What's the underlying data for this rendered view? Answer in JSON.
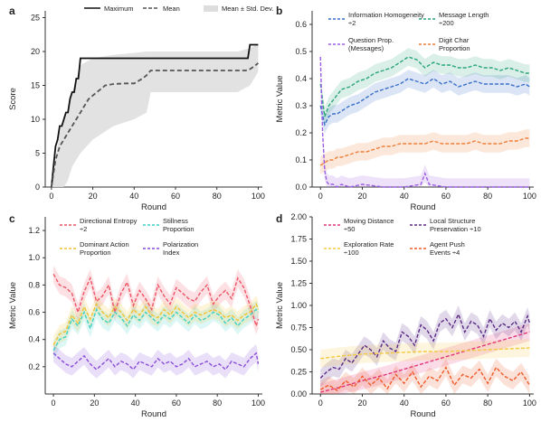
{
  "chart_data": [
    {
      "panel": "a",
      "type": "line",
      "xlabel": "Round",
      "ylabel": "Score",
      "xlim": [
        -3,
        102
      ],
      "ylim": [
        0,
        26
      ],
      "xticks": [
        0,
        20,
        40,
        60,
        80,
        100
      ],
      "yticks": [
        0,
        5,
        10,
        15,
        20,
        25
      ],
      "grid": false,
      "legend": {
        "placement": "top",
        "entries": [
          "Maximum",
          "Mean",
          "Mean ± Std. Dev."
        ]
      },
      "series": [
        {
          "name": "Maximum",
          "style": "solid",
          "color": "#111111",
          "x": [
            0,
            1,
            2,
            3,
            4,
            5,
            6,
            7,
            8,
            9,
            10,
            11,
            12,
            13,
            14,
            16,
            20,
            30,
            40,
            50,
            60,
            70,
            80,
            90,
            95,
            96,
            98,
            100
          ],
          "y": [
            0,
            3,
            6,
            7,
            9,
            9,
            10,
            11,
            11,
            13,
            14,
            14,
            16,
            16,
            19,
            19,
            19,
            19,
            19,
            19,
            19,
            19,
            19,
            19,
            19,
            21,
            21,
            21
          ]
        },
        {
          "name": "Mean",
          "style": "dashed",
          "color": "#555555",
          "x": [
            0,
            1,
            2,
            4,
            6,
            8,
            10,
            12,
            14,
            16,
            18,
            20,
            22,
            24,
            26,
            30,
            36,
            40,
            44,
            46,
            48,
            55,
            60,
            70,
            80,
            90,
            94,
            96,
            98,
            100
          ],
          "y": [
            0,
            2,
            4,
            6,
            7,
            8,
            9,
            10,
            11,
            12,
            13,
            13.5,
            14,
            14.5,
            15,
            15.2,
            15.3,
            15.3,
            16,
            16.5,
            17.2,
            17.2,
            17.2,
            17.2,
            17.2,
            17.2,
            17.2,
            17.4,
            17.8,
            18.3
          ]
        },
        {
          "name": "Mean ± Std. Dev.",
          "type": "band",
          "color": "#dddddd",
          "x": [
            0,
            2,
            4,
            6,
            8,
            10,
            12,
            14,
            20,
            30,
            40,
            46,
            48,
            50,
            60,
            70,
            80,
            90,
            96,
            98,
            100
          ],
          "lower": [
            0,
            0,
            0,
            0,
            1,
            3,
            4,
            5,
            7,
            9,
            10,
            11,
            14,
            14,
            14,
            14,
            14,
            14,
            15,
            16,
            17
          ],
          "upper": [
            0,
            4,
            8,
            10,
            11,
            14,
            16,
            18,
            19,
            19.5,
            19.8,
            20,
            20,
            20,
            20,
            20,
            20,
            20,
            20.5,
            20.8,
            21
          ]
        }
      ]
    },
    {
      "panel": "b",
      "type": "line",
      "xlabel": "Round",
      "ylabel": "Metric Value",
      "xlim": [
        -4,
        102
      ],
      "ylim": [
        0,
        0.65
      ],
      "xticks": [
        0,
        20,
        40,
        60,
        80,
        100
      ],
      "yticks": [
        0.0,
        0.1,
        0.2,
        0.3,
        0.4,
        0.5,
        0.6
      ],
      "ytick_labels": [
        "0.0",
        "0.1",
        "0.2",
        "0.3",
        "0.4",
        "0.5",
        "0.6"
      ],
      "grid": false,
      "legend": {
        "placement": "top",
        "columns": 2
      },
      "series": [
        {
          "name": "Information Homogeneity ÷2",
          "color": "#3a6fc8",
          "x": [
            0,
            2,
            4,
            6,
            8,
            10,
            14,
            18,
            22,
            26,
            30,
            34,
            38,
            42,
            46,
            50,
            54,
            58,
            62,
            66,
            70,
            74,
            78,
            82,
            86,
            90,
            94,
            98,
            100
          ],
          "y": [
            0.3,
            0.23,
            0.26,
            0.27,
            0.27,
            0.28,
            0.3,
            0.31,
            0.33,
            0.35,
            0.36,
            0.37,
            0.38,
            0.4,
            0.39,
            0.38,
            0.4,
            0.38,
            0.39,
            0.37,
            0.38,
            0.39,
            0.38,
            0.38,
            0.38,
            0.38,
            0.37,
            0.38,
            0.37
          ]
        },
        {
          "name": "Message Length ÷200",
          "color": "#2aa57a",
          "x": [
            0,
            2,
            4,
            6,
            8,
            10,
            14,
            18,
            22,
            26,
            30,
            34,
            38,
            42,
            46,
            50,
            54,
            58,
            62,
            66,
            70,
            74,
            78,
            82,
            86,
            90,
            94,
            98,
            100
          ],
          "y": [
            0.38,
            0.26,
            0.3,
            0.32,
            0.34,
            0.36,
            0.37,
            0.39,
            0.4,
            0.42,
            0.43,
            0.44,
            0.46,
            0.48,
            0.47,
            0.44,
            0.46,
            0.45,
            0.45,
            0.44,
            0.44,
            0.45,
            0.44,
            0.44,
            0.43,
            0.44,
            0.43,
            0.42,
            0.42
          ]
        },
        {
          "name": "Question Prop. (Messages)",
          "color": "#9b5de5",
          "x": [
            0,
            1,
            2,
            3,
            4,
            6,
            8,
            10,
            14,
            20,
            30,
            40,
            48,
            50,
            52,
            60,
            70,
            80,
            90,
            95,
            100
          ],
          "y": [
            0.48,
            0.2,
            0.06,
            0.02,
            0.01,
            0.01,
            0.0,
            0.01,
            0.0,
            0.01,
            0.0,
            0.0,
            0.01,
            0.05,
            0.01,
            0.0,
            0.0,
            0.0,
            0.0,
            0.0,
            0.0
          ]
        },
        {
          "name": "Digit Char Proportion",
          "color": "#ee7f3a",
          "x": [
            0,
            2,
            4,
            6,
            8,
            10,
            14,
            18,
            22,
            26,
            30,
            34,
            38,
            42,
            46,
            50,
            54,
            58,
            62,
            66,
            70,
            74,
            78,
            82,
            86,
            90,
            94,
            98,
            100
          ],
          "y": [
            0.08,
            0.09,
            0.1,
            0.1,
            0.11,
            0.11,
            0.12,
            0.13,
            0.13,
            0.14,
            0.15,
            0.15,
            0.16,
            0.16,
            0.16,
            0.16,
            0.17,
            0.16,
            0.16,
            0.16,
            0.16,
            0.17,
            0.16,
            0.16,
            0.16,
            0.17,
            0.17,
            0.18,
            0.18
          ]
        }
      ]
    },
    {
      "panel": "c",
      "type": "line",
      "xlabel": "Round",
      "ylabel": "Metric Value",
      "xlim": [
        -4,
        102
      ],
      "ylim": [
        0,
        1.3
      ],
      "xticks": [
        0,
        20,
        40,
        60,
        80,
        100
      ],
      "yticks": [
        0.2,
        0.4,
        0.6,
        0.8,
        1.0,
        1.2
      ],
      "ytick_labels": [
        "0.2",
        "0.4",
        "0.6",
        "0.8",
        "1.0",
        "1.2"
      ],
      "grid": false,
      "legend": {
        "placement": "top",
        "columns": 2
      },
      "series": [
        {
          "name": "Directional Entropy ÷2",
          "color": "#ee5566",
          "x": [
            0,
            3,
            6,
            9,
            12,
            15,
            18,
            21,
            24,
            27,
            30,
            33,
            36,
            39,
            42,
            45,
            48,
            51,
            54,
            57,
            60,
            63,
            66,
            69,
            72,
            75,
            78,
            81,
            84,
            87,
            90,
            93,
            96,
            99,
            100
          ],
          "y": [
            0.88,
            0.8,
            0.78,
            0.74,
            0.6,
            0.75,
            0.85,
            0.68,
            0.72,
            0.8,
            0.6,
            0.74,
            0.82,
            0.65,
            0.76,
            0.7,
            0.62,
            0.8,
            0.72,
            0.66,
            0.78,
            0.74,
            0.7,
            0.68,
            0.75,
            0.8,
            0.66,
            0.72,
            0.76,
            0.7,
            0.85,
            0.78,
            0.65,
            0.5,
            0.55
          ]
        },
        {
          "name": "Stillness Proportion",
          "color": "#3fd1c6",
          "x": [
            0,
            3,
            6,
            9,
            12,
            15,
            18,
            21,
            24,
            27,
            30,
            33,
            36,
            39,
            42,
            45,
            48,
            51,
            54,
            57,
            60,
            63,
            66,
            69,
            72,
            75,
            78,
            81,
            84,
            87,
            90,
            93,
            96,
            99,
            100
          ],
          "y": [
            0.32,
            0.4,
            0.42,
            0.55,
            0.5,
            0.6,
            0.48,
            0.62,
            0.55,
            0.52,
            0.6,
            0.56,
            0.5,
            0.58,
            0.54,
            0.6,
            0.56,
            0.52,
            0.58,
            0.55,
            0.6,
            0.56,
            0.52,
            0.58,
            0.54,
            0.56,
            0.6,
            0.58,
            0.52,
            0.56,
            0.5,
            0.55,
            0.58,
            0.62,
            0.6
          ]
        },
        {
          "name": "Dominant Action Proportion",
          "color": "#f2c230",
          "x": [
            0,
            3,
            6,
            9,
            12,
            15,
            18,
            21,
            24,
            27,
            30,
            33,
            36,
            39,
            42,
            45,
            48,
            51,
            54,
            57,
            60,
            63,
            66,
            69,
            72,
            75,
            78,
            81,
            84,
            87,
            90,
            93,
            96,
            99,
            100
          ],
          "y": [
            0.36,
            0.44,
            0.46,
            0.58,
            0.52,
            0.64,
            0.55,
            0.66,
            0.6,
            0.56,
            0.64,
            0.6,
            0.54,
            0.62,
            0.58,
            0.64,
            0.58,
            0.56,
            0.62,
            0.58,
            0.64,
            0.6,
            0.56,
            0.6,
            0.58,
            0.6,
            0.62,
            0.6,
            0.56,
            0.58,
            0.54,
            0.58,
            0.6,
            0.66,
            0.62
          ]
        },
        {
          "name": "Polarization Index",
          "color": "#8a4fd8",
          "x": [
            0,
            3,
            6,
            9,
            12,
            15,
            18,
            21,
            24,
            27,
            30,
            33,
            36,
            39,
            42,
            45,
            48,
            51,
            54,
            57,
            60,
            63,
            66,
            69,
            72,
            75,
            78,
            81,
            84,
            87,
            90,
            93,
            96,
            99,
            100
          ],
          "y": [
            0.3,
            0.26,
            0.22,
            0.2,
            0.24,
            0.28,
            0.22,
            0.18,
            0.22,
            0.26,
            0.2,
            0.24,
            0.22,
            0.18,
            0.24,
            0.22,
            0.2,
            0.26,
            0.22,
            0.24,
            0.2,
            0.22,
            0.26,
            0.2,
            0.22,
            0.24,
            0.2,
            0.22,
            0.18,
            0.24,
            0.22,
            0.2,
            0.26,
            0.3,
            0.22
          ]
        }
      ]
    },
    {
      "panel": "d",
      "type": "line",
      "xlabel": "Round",
      "ylabel": "Metric Value",
      "xlim": [
        -4,
        102
      ],
      "ylim": [
        0,
        2.0
      ],
      "xticks": [
        0,
        20,
        40,
        60,
        80,
        100
      ],
      "yticks": [
        0.0,
        0.25,
        0.5,
        0.75,
        1.0,
        1.25,
        1.5,
        1.75,
        2.0
      ],
      "ytick_labels": [
        "0.00",
        "0.25",
        "0.50",
        "0.75",
        "1.00",
        "1.25",
        "1.50",
        "1.75",
        "2.00"
      ],
      "grid": false,
      "legend": {
        "placement": "top",
        "columns": 2
      },
      "series": [
        {
          "name": "Moving Distance ÷50",
          "color": "#e2367a",
          "x": [
            0,
            10,
            20,
            30,
            40,
            50,
            60,
            70,
            80,
            90,
            100
          ],
          "y": [
            0.02,
            0.08,
            0.15,
            0.21,
            0.28,
            0.35,
            0.42,
            0.49,
            0.56,
            0.63,
            0.7
          ]
        },
        {
          "name": "Local Structure Preservation ÷10",
          "color": "#5b2a86",
          "x": [
            0,
            3,
            6,
            9,
            12,
            15,
            18,
            21,
            24,
            27,
            30,
            33,
            36,
            39,
            42,
            45,
            48,
            51,
            54,
            57,
            60,
            63,
            66,
            69,
            72,
            75,
            78,
            81,
            84,
            87,
            90,
            93,
            96,
            99,
            100
          ],
          "y": [
            0.18,
            0.25,
            0.3,
            0.28,
            0.4,
            0.35,
            0.45,
            0.55,
            0.5,
            0.42,
            0.6,
            0.52,
            0.48,
            0.7,
            0.65,
            0.55,
            0.78,
            0.72,
            0.6,
            0.8,
            0.85,
            0.75,
            0.9,
            0.7,
            0.82,
            0.78,
            0.65,
            0.85,
            0.72,
            0.8,
            0.75,
            0.82,
            0.7,
            0.88,
            0.8
          ]
        },
        {
          "name": "Exploration Rate ÷100",
          "color": "#f5c842",
          "x": [
            0,
            10,
            20,
            30,
            40,
            50,
            60,
            70,
            80,
            90,
            100
          ],
          "y": [
            0.4,
            0.43,
            0.45,
            0.46,
            0.47,
            0.48,
            0.48,
            0.49,
            0.5,
            0.51,
            0.52
          ]
        },
        {
          "name": "Agent Push Events ÷4",
          "color": "#f05a28",
          "x": [
            0,
            4,
            8,
            12,
            16,
            20,
            24,
            28,
            32,
            36,
            40,
            44,
            48,
            52,
            56,
            60,
            64,
            68,
            72,
            76,
            80,
            84,
            88,
            92,
            96,
            100
          ],
          "y": [
            0.05,
            0.1,
            0.04,
            0.15,
            0.08,
            0.2,
            0.1,
            0.18,
            0.06,
            0.22,
            0.12,
            0.25,
            0.08,
            0.2,
            0.15,
            0.3,
            0.1,
            0.22,
            0.18,
            0.28,
            0.12,
            0.3,
            0.2,
            0.15,
            0.25,
            0.1
          ]
        }
      ]
    }
  ]
}
